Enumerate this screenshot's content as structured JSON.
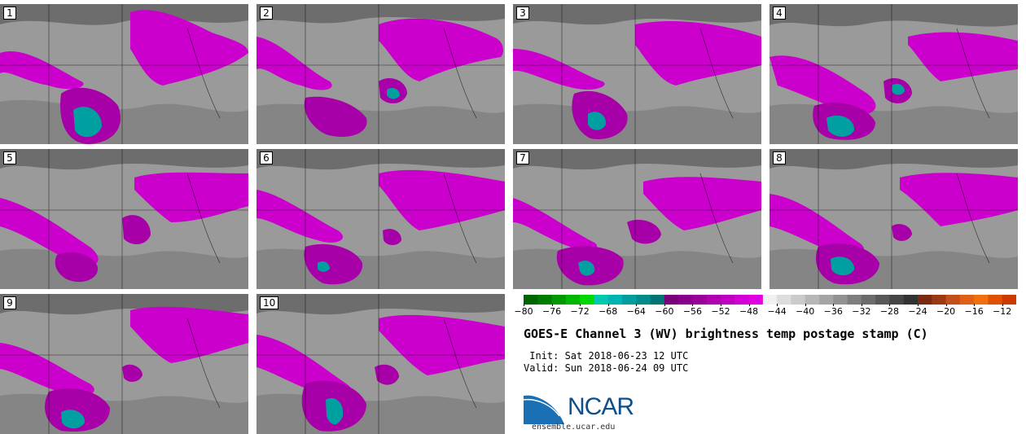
{
  "panels": [
    {
      "label": "1"
    },
    {
      "label": "2"
    },
    {
      "label": "3"
    },
    {
      "label": "4"
    },
    {
      "label": "5"
    },
    {
      "label": "6"
    },
    {
      "label": "7"
    },
    {
      "label": "8"
    },
    {
      "label": "9"
    },
    {
      "label": "10"
    }
  ],
  "title": "GOES-E Channel 3 (WV) brightness temp postage stamp (C)",
  "init": "Init: Sat 2018-06-23 12 UTC",
  "valid": "Valid: Sun 2018-06-24 09 UTC",
  "logo": {
    "text": "NCAR",
    "site": "ensemble.ucar.edu"
  },
  "colorbar": {
    "min": -80,
    "max": -10,
    "ticks": [
      -80,
      -76,
      -72,
      -68,
      -64,
      -60,
      -56,
      -52,
      -48,
      -44,
      -40,
      -36,
      -32,
      -28,
      -24,
      -20,
      -16,
      -12
    ],
    "colors": [
      "#006400",
      "#007a00",
      "#009900",
      "#00b800",
      "#00d800",
      "#00c8b0",
      "#00b4b4",
      "#009e9e",
      "#008a8a",
      "#007474",
      "#780078",
      "#8a008a",
      "#9c009c",
      "#ae00ae",
      "#c000c0",
      "#d200d2",
      "#e000e0",
      "#f0f0f0",
      "#dddddd",
      "#cacaca",
      "#b7b7b7",
      "#a4a4a4",
      "#919191",
      "#7e7e7e",
      "#6b6b6b",
      "#585858",
      "#454545",
      "#323232",
      "#7a2a10",
      "#9a3a14",
      "#c45018",
      "#e06018",
      "#f07010",
      "#e05000",
      "#cc3a00"
    ],
    "units": "C"
  },
  "colors": {
    "moist": "#cc00cc",
    "cold_core": "#00a0a0",
    "background": "#9a9a9a"
  }
}
